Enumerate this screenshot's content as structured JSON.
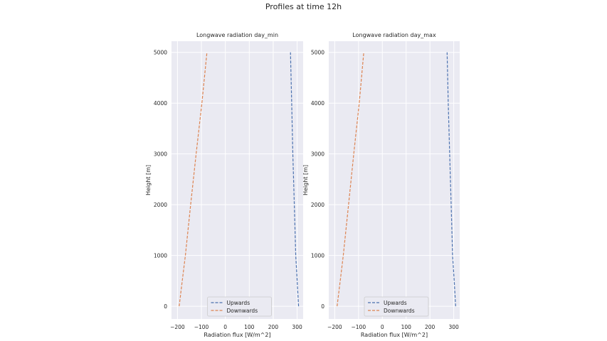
{
  "figure": {
    "suptitle": "Profiles at time 12h"
  },
  "colors": {
    "plot_bg": "#eaeaf2",
    "grid": "#ffffff",
    "upwards": "#4c72b0",
    "downwards": "#dd8452",
    "text": "#262626"
  },
  "chart_data": [
    {
      "type": "line",
      "title": "Longwave radiation day_min",
      "xlabel": "Radiation flux [W/m^2]",
      "ylabel": "Height [m]",
      "xlim": [
        -225,
        325
      ],
      "ylim": [
        -250,
        5220
      ],
      "xticks": [
        -200,
        -100,
        0,
        100,
        200,
        300
      ],
      "xtick_labels": [
        "−200",
        "−100",
        "0",
        "100",
        "200",
        "300"
      ],
      "yticks": [
        0,
        1000,
        2000,
        3000,
        4000,
        5000
      ],
      "ytick_labels": [
        "0",
        "1000",
        "2000",
        "3000",
        "4000",
        "5000"
      ],
      "grid": true,
      "legend_position": "lower center",
      "line_style": "dashed",
      "series": [
        {
          "name": "Upwards",
          "x": [
            306,
            300,
            294,
            288,
            282,
            277,
            272
          ],
          "y": [
            0,
            500,
            1000,
            2000,
            3000,
            4000,
            5000
          ]
        },
        {
          "name": "Downwards",
          "x": [
            -193,
            -180,
            -167,
            -145,
            -122,
            -98,
            -77
          ],
          "y": [
            0,
            500,
            1000,
            2000,
            3000,
            4000,
            5000
          ]
        }
      ]
    },
    {
      "type": "line",
      "title": "Longwave radiation day_max",
      "xlabel": "Radiation flux [W/m^2]",
      "ylabel": "Height [m]",
      "xlim": [
        -225,
        325
      ],
      "ylim": [
        -250,
        5220
      ],
      "xticks": [
        -200,
        -100,
        0,
        100,
        200,
        300
      ],
      "xtick_labels": [
        "−200",
        "−100",
        "0",
        "100",
        "200",
        "300"
      ],
      "yticks": [
        0,
        1000,
        2000,
        3000,
        4000,
        5000
      ],
      "ytick_labels": [
        "0",
        "1000",
        "2000",
        "3000",
        "4000",
        "5000"
      ],
      "grid": true,
      "legend_position": "lower center",
      "line_style": "dashed",
      "series": [
        {
          "name": "Upwards",
          "x": [
            308,
            302,
            295,
            289,
            283,
            277,
            272
          ],
          "y": [
            0,
            500,
            1000,
            2000,
            3000,
            4000,
            5000
          ]
        },
        {
          "name": "Downwards",
          "x": [
            -190,
            -177,
            -164,
            -142,
            -120,
            -97,
            -78
          ],
          "y": [
            0,
            500,
            1000,
            2000,
            3000,
            4000,
            5000
          ]
        }
      ]
    }
  ]
}
